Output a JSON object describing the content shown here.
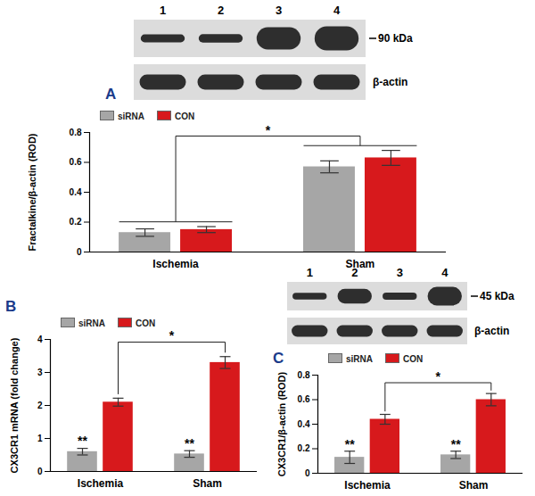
{
  "chart_data": [
    {
      "panel": "A",
      "type": "bar",
      "ylabel": "Fractalkine/β-actin (ROD)",
      "categories": [
        "Ischemia",
        "Sham"
      ],
      "series": [
        {
          "name": "siRNA",
          "color": "#a6a6a6",
          "values": [
            0.13,
            0.57
          ],
          "errors": [
            0.025,
            0.04
          ]
        },
        {
          "name": "CON",
          "color": "#d7191c",
          "values": [
            0.15,
            0.63
          ],
          "errors": [
            0.02,
            0.05
          ]
        }
      ],
      "ylim": [
        0,
        0.8
      ],
      "yticks": [
        0,
        0.2,
        0.4,
        0.6,
        0.8
      ],
      "legend": "top-left",
      "annotations": [
        {
          "text": "*",
          "from": {
            "category": "Ischemia"
          },
          "to": {
            "category": "Sham"
          }
        }
      ],
      "blot": {
        "lanes": [
          "1",
          "2",
          "3",
          "4"
        ],
        "band_label": "90 kDa",
        "loading_label": "β-actin"
      }
    },
    {
      "panel": "B",
      "type": "bar",
      "ylabel": "CX3CR1 mRNA (fold change)",
      "categories": [
        "Ischemia",
        "Sham"
      ],
      "series": [
        {
          "name": "siRNA",
          "color": "#a6a6a6",
          "values": [
            0.6,
            0.53
          ],
          "errors": [
            0.1,
            0.1
          ]
        },
        {
          "name": "CON",
          "color": "#d7191c",
          "values": [
            2.1,
            3.3
          ],
          "errors": [
            0.12,
            0.18
          ]
        }
      ],
      "ylim": [
        0,
        4
      ],
      "yticks": [
        0,
        1,
        2,
        3,
        4
      ],
      "legend": "top-left",
      "annotations": [
        {
          "text": "**",
          "at": {
            "category": "Ischemia",
            "series": "siRNA"
          }
        },
        {
          "text": "**",
          "at": {
            "category": "Sham",
            "series": "siRNA"
          }
        },
        {
          "text": "*",
          "from": {
            "category": "Ischemia",
            "series": "CON"
          },
          "to": {
            "category": "Sham",
            "series": "CON"
          }
        }
      ]
    },
    {
      "panel": "C",
      "type": "bar",
      "ylabel": "CX3CR1/β-actin (ROD)",
      "categories": [
        "Ischemia",
        "Sham"
      ],
      "series": [
        {
          "name": "siRNA",
          "color": "#a6a6a6",
          "values": [
            0.13,
            0.15
          ],
          "errors": [
            0.05,
            0.03
          ]
        },
        {
          "name": "CON",
          "color": "#d7191c",
          "values": [
            0.44,
            0.6
          ],
          "errors": [
            0.04,
            0.05
          ]
        }
      ],
      "ylim": [
        0,
        0.8
      ],
      "yticks": [
        0,
        0.2,
        0.4,
        0.6,
        0.8
      ],
      "legend": "top-left",
      "annotations": [
        {
          "text": "**",
          "at": {
            "category": "Ischemia",
            "series": "siRNA"
          }
        },
        {
          "text": "**",
          "at": {
            "category": "Sham",
            "series": "siRNA"
          }
        },
        {
          "text": "*",
          "from": {
            "category": "Ischemia",
            "series": "CON"
          },
          "to": {
            "category": "Sham",
            "series": "CON"
          }
        }
      ],
      "blot": {
        "lanes": [
          "1",
          "2",
          "3",
          "4"
        ],
        "band_label": "45 kDa",
        "loading_label": "β-actin"
      }
    }
  ]
}
